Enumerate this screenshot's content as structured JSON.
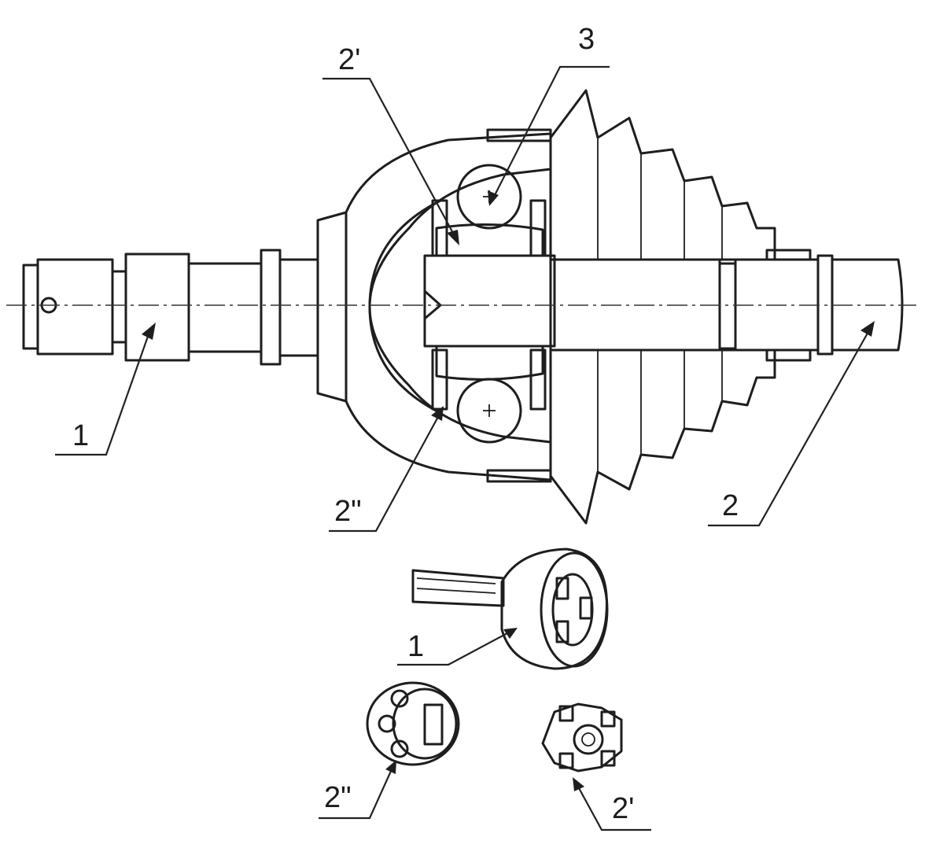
{
  "labels": {
    "shaft_section": "1",
    "shaft_right": "2",
    "inner_race_top": "2'",
    "cage_bottom": "2\"",
    "ball": "3",
    "detail_housing": "1",
    "detail_cage": "2\"",
    "detail_inner_race": "2'"
  },
  "colors": {
    "ink": "#1e1e1e",
    "hatch": "#444444",
    "paper": "#ffffff",
    "shade": "#e6e6e6"
  }
}
